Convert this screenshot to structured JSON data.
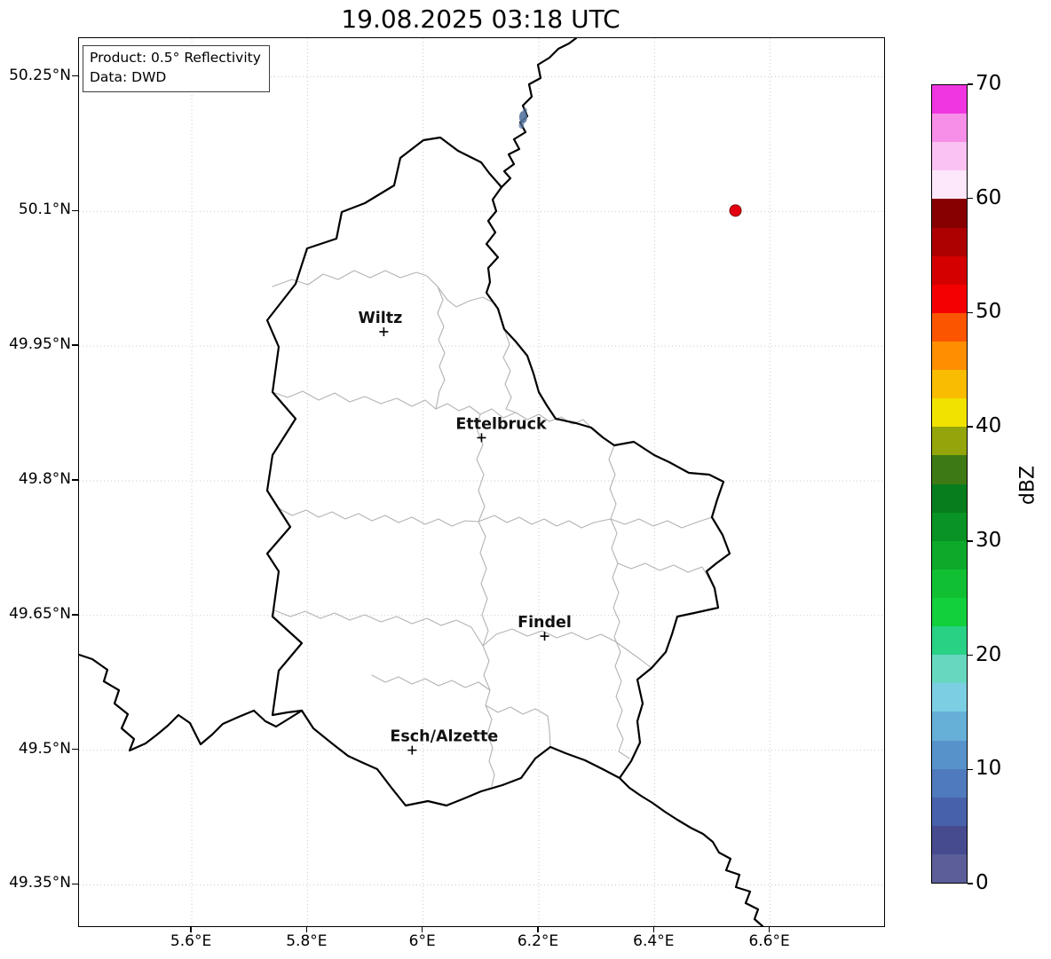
{
  "title": "19.08.2025 03:18 UTC",
  "info_box": {
    "line1": "Product: 0.5° Reflectivity",
    "line2": "Data: DWD"
  },
  "map": {
    "extent": {
      "lon_min": 5.405,
      "lon_max": 6.797,
      "lat_min": 49.304,
      "lat_max": 50.293
    },
    "x_ticks": [
      {
        "value": 5.6,
        "label": "5.6°E"
      },
      {
        "value": 5.8,
        "label": "5.8°E"
      },
      {
        "value": 6.0,
        "label": "6°E"
      },
      {
        "value": 6.2,
        "label": "6.2°E"
      },
      {
        "value": 6.4,
        "label": "6.4°E"
      },
      {
        "value": 6.6,
        "label": "6.6°E"
      }
    ],
    "y_ticks": [
      {
        "value": 50.25,
        "label": "50.25°N"
      },
      {
        "value": 50.1,
        "label": "50.1°N"
      },
      {
        "value": 49.95,
        "label": "49.95°N"
      },
      {
        "value": 49.8,
        "label": "49.8°N"
      },
      {
        "value": 49.65,
        "label": "49.65°N"
      },
      {
        "value": 49.5,
        "label": "49.5°N"
      },
      {
        "value": 49.35,
        "label": "49.35°N"
      }
    ],
    "cities": [
      {
        "name": "Wiltz",
        "lon": 5.932,
        "lat": 49.966
      },
      {
        "name": "Ettelbruck",
        "lon": 6.101,
        "lat": 49.848
      },
      {
        "name": "Findel",
        "lon": 6.21,
        "lat": 49.627
      },
      {
        "name": "Esch/Alzette",
        "lon": 5.981,
        "lat": 49.5
      }
    ],
    "echoes": [
      {
        "shape": "dot",
        "lon": 6.54,
        "lat": 50.101,
        "dbz_at_least": 50,
        "color": "#e30010"
      },
      {
        "shape": "smudge",
        "lon": 6.173,
        "lat": 50.205,
        "dbz_approx": 5,
        "color": "#54749f"
      }
    ]
  },
  "colorbar": {
    "label": "dBZ",
    "min": 0,
    "max": 70,
    "step": 2.5,
    "tick_values": [
      0,
      10,
      20,
      30,
      40,
      50,
      60,
      70
    ],
    "colors_bottom_to_top": [
      "#5b5e99",
      "#464b8f",
      "#4861ab",
      "#4f7abd",
      "#5793ca",
      "#66afd7",
      "#7ccfe3",
      "#67d7c0",
      "#28d184",
      "#12cf3c",
      "#10c032",
      "#0ca92b",
      "#099324",
      "#077d1e",
      "#3d7a14",
      "#93a50a",
      "#f2e200",
      "#f9bc00",
      "#fd8f00",
      "#fb5500",
      "#f40000",
      "#d40000",
      "#ad0000",
      "#860000",
      "#fce7fb",
      "#fac2f3",
      "#f78fe8",
      "#ef36e0"
    ]
  }
}
